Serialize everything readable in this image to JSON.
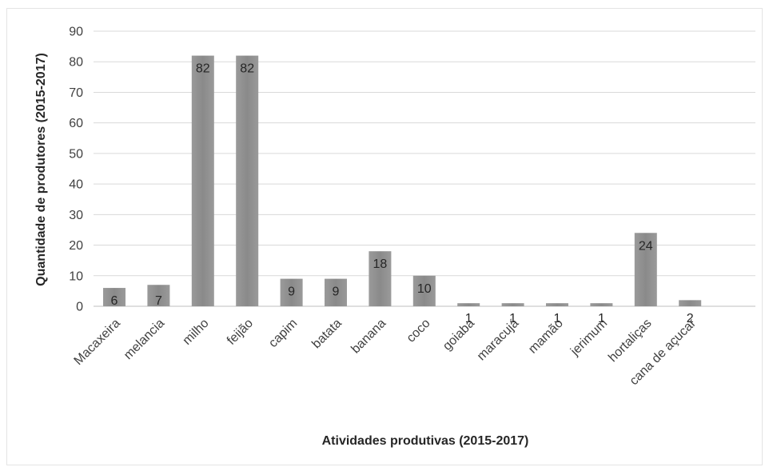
{
  "chart_data": {
    "type": "bar",
    "title": "",
    "xlabel": "Atividades produtivas (2015-2017)",
    "ylabel": "Quantidade de produtores (2015-2017)",
    "ylim": [
      0,
      90
    ],
    "yticks": [
      0,
      10,
      20,
      30,
      40,
      50,
      60,
      70,
      80,
      90
    ],
    "grid": true,
    "legend": "none",
    "categories": [
      "Macaxeira",
      "melancia",
      "milho",
      "feijão",
      "capim",
      "batata",
      "banana",
      "coco",
      "goiaba",
      "maracujá",
      "mamão",
      "jerimum",
      "hortaliças",
      "cana de açucar"
    ],
    "values": [
      6,
      7,
      82,
      82,
      9,
      9,
      18,
      10,
      1,
      1,
      1,
      1,
      24,
      2
    ],
    "bar_color": "#8c8c8c",
    "grid_color": "#d9d9d9"
  }
}
